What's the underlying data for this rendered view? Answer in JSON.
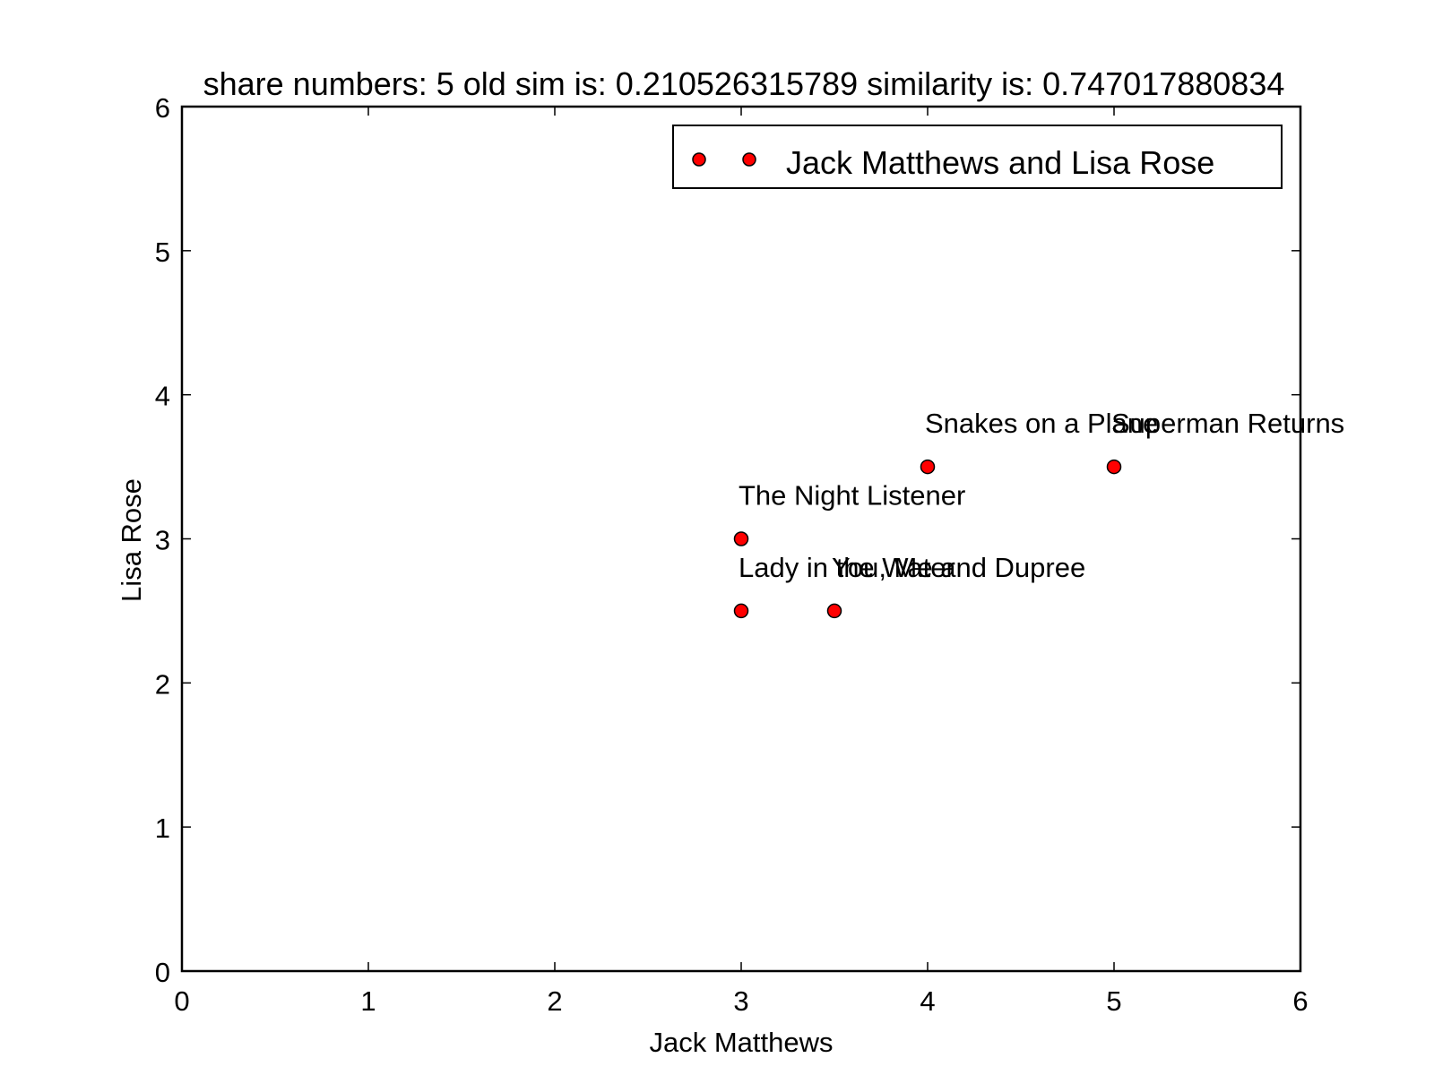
{
  "chart_data": {
    "type": "scatter",
    "title": "share numbers: 5 old sim is: 0.210526315789 similarity is: 0.747017880834",
    "xlabel": "Jack Matthews",
    "ylabel": "Lisa Rose",
    "xlim": [
      0,
      6
    ],
    "ylim": [
      0,
      6
    ],
    "x_ticks": [
      "0",
      "1",
      "2",
      "3",
      "4",
      "5",
      "6"
    ],
    "y_ticks": [
      "0",
      "1",
      "2",
      "3",
      "4",
      "5",
      "6"
    ],
    "grid": false,
    "legend": {
      "placement": "top-right",
      "entries": [
        "Jack Matthews and Lisa Rose"
      ]
    },
    "series": [
      {
        "name": "Jack Matthews and Lisa Rose",
        "color": "#ff0000",
        "points": [
          {
            "x": 4,
            "y": 3.5,
            "label": "Snakes on a Plane"
          },
          {
            "x": 5,
            "y": 3.5,
            "label": "Superman Returns"
          },
          {
            "x": 3,
            "y": 3.0,
            "label": "The Night Listener"
          },
          {
            "x": 3,
            "y": 2.5,
            "label": "Lady in the Water"
          },
          {
            "x": 3.5,
            "y": 2.5,
            "label": "You, Me and Dupree"
          }
        ]
      }
    ]
  }
}
